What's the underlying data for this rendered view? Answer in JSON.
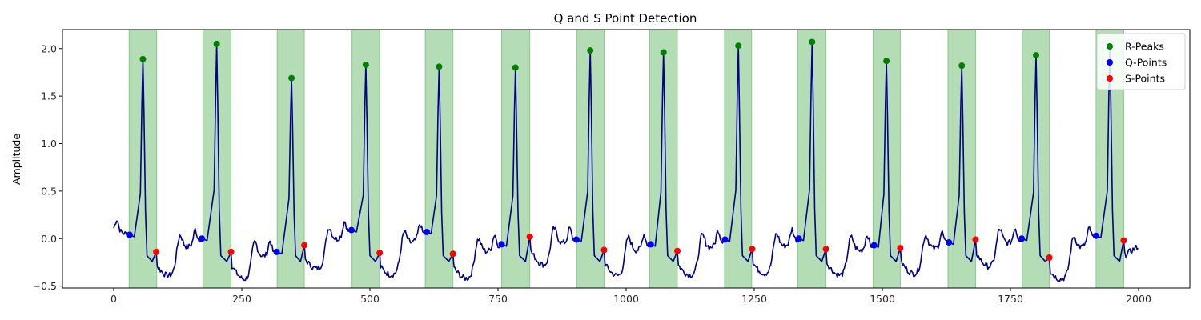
{
  "chart_data": {
    "type": "line",
    "title": "Q and S Point Detection",
    "xlabel": "",
    "ylabel": "Amplitude",
    "xlim": [
      -100,
      2100
    ],
    "ylim": [
      -0.52,
      2.2
    ],
    "xticks": [
      0,
      250,
      500,
      750,
      1000,
      1250,
      1500,
      1750,
      2000
    ],
    "xtick_labels": [
      "0",
      "250",
      "500",
      "750",
      "1000",
      "1250",
      "1500",
      "1750",
      "2000"
    ],
    "yticks": [
      -0.5,
      0.0,
      0.5,
      1.0,
      1.5,
      2.0
    ],
    "ytick_labels": [
      "−0.5",
      "0.0",
      "0.5",
      "1.0",
      "1.5",
      "2.0"
    ],
    "grid": false,
    "legend_position": "top-right",
    "colors": {
      "signal": "#00008b",
      "r_peaks": "#008000",
      "q_points": "#0000ff",
      "s_points": "#ff0000",
      "qrs_region": "#4caf50"
    },
    "qrs_regions": [
      [
        30,
        84
      ],
      [
        174,
        229
      ],
      [
        319,
        372
      ],
      [
        465,
        519
      ],
      [
        608,
        662
      ],
      [
        757,
        812
      ],
      [
        904,
        957
      ],
      [
        1046,
        1100
      ],
      [
        1192,
        1245
      ],
      [
        1335,
        1390
      ],
      [
        1482,
        1535
      ],
      [
        1628,
        1682
      ],
      [
        1773,
        1826
      ],
      [
        1917,
        1971
      ]
    ],
    "r_peaks": {
      "name": "R-Peaks",
      "x": [
        57,
        201,
        347,
        492,
        635,
        784,
        930,
        1073,
        1219,
        1363,
        1508,
        1655,
        1800,
        1944
      ],
      "y": [
        1.89,
        2.05,
        1.69,
        1.83,
        1.81,
        1.8,
        1.98,
        1.96,
        2.03,
        2.07,
        1.87,
        1.82,
        1.93,
        2.02
      ]
    },
    "q_points": {
      "name": "Q-Points",
      "x": [
        31,
        172,
        318,
        464,
        611,
        757,
        903,
        1048,
        1193,
        1337,
        1484,
        1630,
        1772,
        1917
      ],
      "y": [
        0.04,
        0.0,
        -0.14,
        0.09,
        0.07,
        -0.06,
        -0.01,
        -0.06,
        -0.01,
        0.0,
        -0.07,
        -0.04,
        0.0,
        0.03
      ]
    },
    "s_points": {
      "name": "S-Points",
      "x": [
        83,
        229,
        372,
        519,
        662,
        812,
        957,
        1100,
        1246,
        1390,
        1535,
        1682,
        1826,
        1971
      ],
      "y": [
        -0.14,
        -0.14,
        -0.07,
        -0.15,
        -0.16,
        0.02,
        -0.12,
        -0.13,
        -0.11,
        -0.11,
        -0.1,
        -0.01,
        -0.2,
        -0.02
      ]
    }
  }
}
